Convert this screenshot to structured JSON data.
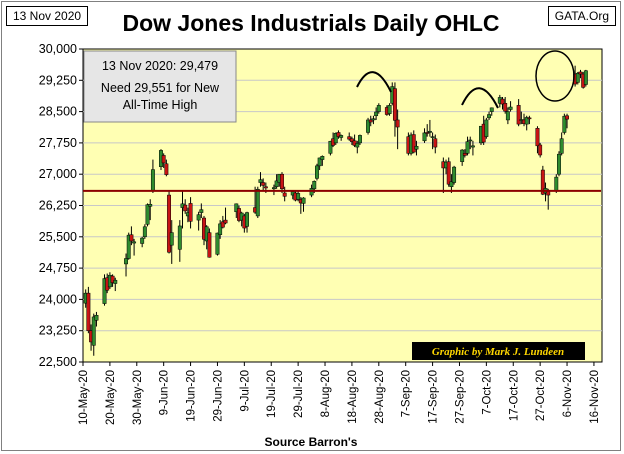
{
  "header": {
    "date_label": "13 Nov 2020",
    "brand": "GATA.Org",
    "title": "Dow Jones Industrials Daily OHLC"
  },
  "footer": {
    "source": "Source Barron's"
  },
  "annotation": {
    "line1": "13 Nov 2020:  29,479",
    "line2": "Need 29,551 for New",
    "line3": "All-Time High"
  },
  "credit": "Graphic by Mark J. Lundeen",
  "colors": {
    "plot_bg": "#ffffb3",
    "up": "#2e8b2e",
    "down": "#c81414",
    "reference_line": "#8b0000",
    "grid": "#c8c8c8"
  },
  "chart_data": {
    "type": "candlestick",
    "x_tick_labels": [
      "10-May-20",
      "20-May-20",
      "30-May-20",
      "9-Jun-20",
      "19-Jun-20",
      "29-Jun-20",
      "9-Jul-20",
      "19-Jul-20",
      "29-Jul-20",
      "8-Aug-20",
      "18-Aug-20",
      "28-Aug-20",
      "7-Sep-20",
      "17-Sep-20",
      "27-Sep-20",
      "7-Oct-20",
      "17-Oct-20",
      "27-Oct-20",
      "6-Nov-20",
      "16-Nov-20"
    ],
    "x_ticks": [
      "2020-05-10",
      "2020-05-20",
      "2020-05-30",
      "2020-06-09",
      "2020-06-19",
      "2020-06-29",
      "2020-07-09",
      "2020-07-19",
      "2020-07-29",
      "2020-08-08",
      "2020-08-18",
      "2020-08-28",
      "2020-09-07",
      "2020-09-17",
      "2020-09-27",
      "2020-10-07",
      "2020-10-17",
      "2020-10-27",
      "2020-11-06",
      "2020-11-16"
    ],
    "x_range": [
      "2020-05-10",
      "2020-11-19"
    ],
    "y_tick_labels": [
      "30,000",
      "29,250",
      "28,500",
      "27,750",
      "27,000",
      "26,250",
      "25,500",
      "24,750",
      "24,000",
      "23,250",
      "22,500"
    ],
    "y_ticks": [
      30000,
      29250,
      28500,
      27750,
      27000,
      26250,
      25500,
      24750,
      24000,
      23250,
      22500
    ],
    "ylim": [
      22500,
      30000
    ],
    "reference_level": 26600,
    "grid": "horizontal",
    "fields": [
      "date",
      "open",
      "high",
      "low",
      "close"
    ],
    "candles": [
      [
        "2020-05-11",
        23910,
        24240,
        23800,
        24150
      ],
      [
        "2020-05-12",
        24150,
        24300,
        23190,
        23250
      ],
      [
        "2020-05-13",
        23250,
        23400,
        22770,
        22980
      ],
      [
        "2020-05-14",
        22900,
        23660,
        22650,
        23580
      ],
      [
        "2020-05-15",
        23500,
        23700,
        23350,
        23620
      ],
      [
        "2020-05-18",
        23900,
        24600,
        23850,
        24500
      ],
      [
        "2020-05-19",
        24520,
        24620,
        24150,
        24220
      ],
      [
        "2020-05-20",
        24300,
        24650,
        24250,
        24580
      ],
      [
        "2020-05-21",
        24560,
        24600,
        24300,
        24400
      ],
      [
        "2020-05-22",
        24380,
        24520,
        24200,
        24460
      ],
      [
        "2020-05-26",
        24850,
        25100,
        24550,
        24980
      ],
      [
        "2020-05-27",
        24980,
        25600,
        24950,
        25540
      ],
      [
        "2020-05-28",
        25550,
        25750,
        25300,
        25400
      ],
      [
        "2020-05-29",
        25350,
        25450,
        25050,
        25380
      ],
      [
        "2020-06-01",
        25340,
        25500,
        25250,
        25470
      ],
      [
        "2020-06-02",
        25500,
        25800,
        25450,
        25740
      ],
      [
        "2020-06-03",
        25800,
        26300,
        25750,
        26270
      ],
      [
        "2020-06-04",
        26230,
        26400,
        25900,
        26280
      ],
      [
        "2020-06-05",
        26600,
        27350,
        26550,
        27110
      ],
      [
        "2020-06-08",
        27180,
        27600,
        27100,
        27570
      ],
      [
        "2020-06-09",
        27450,
        27500,
        27150,
        27270
      ],
      [
        "2020-06-10",
        27250,
        27350,
        26950,
        26990
      ],
      [
        "2020-06-11",
        26500,
        26600,
        25100,
        25130
      ],
      [
        "2020-06-12",
        25300,
        25900,
        24850,
        25600
      ],
      [
        "2020-06-15",
        25200,
        25900,
        24900,
        25760
      ],
      [
        "2020-06-16",
        26200,
        26600,
        25700,
        26290
      ],
      [
        "2020-06-17",
        26260,
        26400,
        26050,
        26120
      ],
      [
        "2020-06-18",
        26000,
        26200,
        25850,
        26080
      ],
      [
        "2020-06-19",
        26300,
        26450,
        25700,
        25870
      ],
      [
        "2020-06-22",
        25900,
        26100,
        25650,
        26030
      ],
      [
        "2020-06-23",
        26080,
        26300,
        25950,
        26150
      ],
      [
        "2020-06-24",
        25950,
        26000,
        25300,
        25440
      ],
      [
        "2020-06-25",
        25400,
        25780,
        25200,
        25740
      ],
      [
        "2020-06-26",
        25600,
        25700,
        25000,
        25010
      ],
      [
        "2020-06-29",
        25080,
        25600,
        25050,
        25590
      ],
      [
        "2020-06-30",
        25550,
        25900,
        25450,
        25810
      ],
      [
        "2020-07-01",
        25860,
        26000,
        25700,
        25730
      ],
      [
        "2020-07-02",
        25900,
        26200,
        25800,
        25830
      ],
      [
        "2020-07-06",
        26100,
        26300,
        25950,
        26290
      ],
      [
        "2020-07-07",
        26180,
        26250,
        25850,
        25890
      ],
      [
        "2020-07-08",
        25900,
        26100,
        25750,
        26070
      ],
      [
        "2020-07-09",
        26000,
        26050,
        25600,
        25710
      ],
      [
        "2020-07-10",
        25750,
        26100,
        25600,
        26080
      ],
      [
        "2020-07-13",
        26200,
        26700,
        26050,
        26090
      ],
      [
        "2020-07-14",
        26000,
        26700,
        25950,
        26640
      ],
      [
        "2020-07-15",
        26800,
        27050,
        26700,
        26870
      ],
      [
        "2020-07-16",
        26800,
        26900,
        26600,
        26730
      ],
      [
        "2020-07-17",
        26700,
        26800,
        26550,
        26670
      ],
      [
        "2020-07-20",
        26650,
        26750,
        26500,
        26680
      ],
      [
        "2020-07-21",
        26700,
        27000,
        26650,
        26840
      ],
      [
        "2020-07-22",
        26800,
        27000,
        26700,
        27000
      ],
      [
        "2020-07-23",
        27000,
        27050,
        26550,
        26650
      ],
      [
        "2020-07-24",
        26550,
        26700,
        26350,
        26470
      ],
      [
        "2020-07-27",
        26500,
        26600,
        26400,
        26580
      ],
      [
        "2020-07-28",
        26550,
        26620,
        26350,
        26380
      ],
      [
        "2020-07-29",
        26400,
        26600,
        26350,
        26540
      ],
      [
        "2020-07-30",
        26400,
        26450,
        26050,
        26310
      ],
      [
        "2020-07-31",
        26300,
        26450,
        26100,
        26430
      ],
      [
        "2020-08-03",
        26500,
        26750,
        26450,
        26660
      ],
      [
        "2020-08-04",
        26650,
        26850,
        26550,
        26830
      ],
      [
        "2020-08-05",
        26900,
        27250,
        26850,
        27200
      ],
      [
        "2020-08-06",
        27200,
        27400,
        27100,
        27390
      ],
      [
        "2020-08-07",
        27350,
        27450,
        27200,
        27430
      ],
      [
        "2020-08-10",
        27500,
        27800,
        27450,
        27790
      ],
      [
        "2020-08-11",
        27850,
        28000,
        27650,
        27690
      ],
      [
        "2020-08-12",
        27750,
        28000,
        27700,
        27980
      ],
      [
        "2020-08-13",
        28000,
        28050,
        27850,
        27900
      ],
      [
        "2020-08-14",
        27880,
        27950,
        27800,
        27930
      ],
      [
        "2020-08-17",
        27900,
        28000,
        27800,
        27840
      ],
      [
        "2020-08-18",
        27850,
        27900,
        27700,
        27780
      ],
      [
        "2020-08-19",
        27800,
        27950,
        27650,
        27690
      ],
      [
        "2020-08-20",
        27650,
        27800,
        27500,
        27740
      ],
      [
        "2020-08-21",
        27750,
        27950,
        27700,
        27930
      ],
      [
        "2020-08-24",
        28000,
        28350,
        27950,
        28300
      ],
      [
        "2020-08-25",
        28300,
        28400,
        28150,
        28250
      ],
      [
        "2020-08-26",
        28300,
        28400,
        28200,
        28330
      ],
      [
        "2020-08-27",
        28400,
        28600,
        28300,
        28490
      ],
      [
        "2020-08-28",
        28500,
        28700,
        28450,
        28650
      ],
      [
        "2020-08-31",
        28600,
        28650,
        28400,
        28430
      ],
      [
        "2020-09-01",
        28450,
        28700,
        28400,
        28650
      ],
      [
        "2020-09-02",
        28700,
        29200,
        28650,
        29100
      ],
      [
        "2020-09-03",
        29050,
        29200,
        27900,
        28290
      ],
      [
        "2020-09-04",
        28300,
        28550,
        27600,
        28130
      ],
      [
        "2020-09-08",
        27900,
        28000,
        27450,
        27500
      ],
      [
        "2020-09-09",
        27500,
        28000,
        27450,
        27940
      ],
      [
        "2020-09-10",
        27950,
        28050,
        27500,
        27530
      ],
      [
        "2020-09-11",
        27600,
        27800,
        27450,
        27670
      ],
      [
        "2020-09-14",
        27800,
        28100,
        27750,
        27990
      ],
      [
        "2020-09-15",
        28000,
        28200,
        27900,
        27995
      ],
      [
        "2020-09-16",
        28000,
        28300,
        27900,
        28030
      ],
      [
        "2020-09-17",
        27900,
        28000,
        27600,
        27900
      ],
      [
        "2020-09-18",
        27850,
        27950,
        27500,
        27650
      ],
      [
        "2020-09-21",
        27300,
        27400,
        26550,
        27150
      ],
      [
        "2020-09-22",
        27150,
        27350,
        27000,
        27290
      ],
      [
        "2020-09-23",
        27300,
        27400,
        26700,
        26760
      ],
      [
        "2020-09-24",
        26700,
        27000,
        26550,
        26820
      ],
      [
        "2020-09-25",
        26800,
        27200,
        26750,
        27170
      ],
      [
        "2020-09-28",
        27300,
        27600,
        27200,
        27580
      ],
      [
        "2020-09-29",
        27500,
        27600,
        27400,
        27450
      ],
      [
        "2020-09-30",
        27500,
        27900,
        27450,
        27780
      ],
      [
        "2020-10-01",
        27800,
        27900,
        27600,
        27820
      ],
      [
        "2020-10-02",
        27650,
        27800,
        27450,
        27680
      ],
      [
        "2020-10-05",
        27750,
        28150,
        27700,
        28150
      ],
      [
        "2020-10-06",
        28200,
        28400,
        27700,
        27770
      ],
      [
        "2020-10-07",
        27900,
        28350,
        27850,
        28300
      ],
      [
        "2020-10-08",
        28350,
        28500,
        28300,
        28430
      ],
      [
        "2020-10-09",
        28500,
        28600,
        28400,
        28590
      ],
      [
        "2020-10-12",
        28700,
        28900,
        28600,
        28840
      ],
      [
        "2020-10-13",
        28800,
        28850,
        28550,
        28680
      ],
      [
        "2020-10-14",
        28700,
        28850,
        28450,
        28510
      ],
      [
        "2020-10-15",
        28300,
        28600,
        28200,
        28500
      ],
      [
        "2020-10-16",
        28550,
        28750,
        28500,
        28610
      ],
      [
        "2020-10-19",
        28650,
        28800,
        28150,
        28200
      ],
      [
        "2020-10-20",
        28300,
        28500,
        28200,
        28310
      ],
      [
        "2020-10-21",
        28300,
        28450,
        28150,
        28210
      ],
      [
        "2020-10-22",
        28200,
        28400,
        28050,
        28360
      ],
      [
        "2020-10-23",
        28350,
        28400,
        28200,
        28330
      ],
      [
        "2020-10-26",
        28100,
        28150,
        27500,
        27680
      ],
      [
        "2020-10-27",
        27700,
        27750,
        27400,
        27460
      ],
      [
        "2020-10-28",
        27100,
        27200,
        26500,
        26520
      ],
      [
        "2020-10-29",
        26550,
        26800,
        26350,
        26660
      ],
      [
        "2020-10-30",
        26600,
        26650,
        26150,
        26500
      ],
      [
        "2020-11-02",
        26600,
        27000,
        26550,
        26930
      ],
      [
        "2020-11-03",
        27000,
        27550,
        26950,
        27480
      ],
      [
        "2020-11-04",
        27500,
        28000,
        27450,
        27850
      ],
      [
        "2020-11-05",
        28000,
        28450,
        27950,
        28390
      ],
      [
        "2020-11-06",
        28400,
        28450,
        28100,
        28320
      ],
      [
        "2020-11-09",
        29400,
        29600,
        29100,
        29160
      ],
      [
        "2020-11-10",
        29200,
        29450,
        29150,
        29420
      ],
      [
        "2020-11-11",
        29450,
        29500,
        29300,
        29400
      ],
      [
        "2020-11-12",
        29400,
        29450,
        29050,
        29080
      ],
      [
        "2020-11-13",
        29150,
        29500,
        29100,
        29479
      ]
    ]
  }
}
